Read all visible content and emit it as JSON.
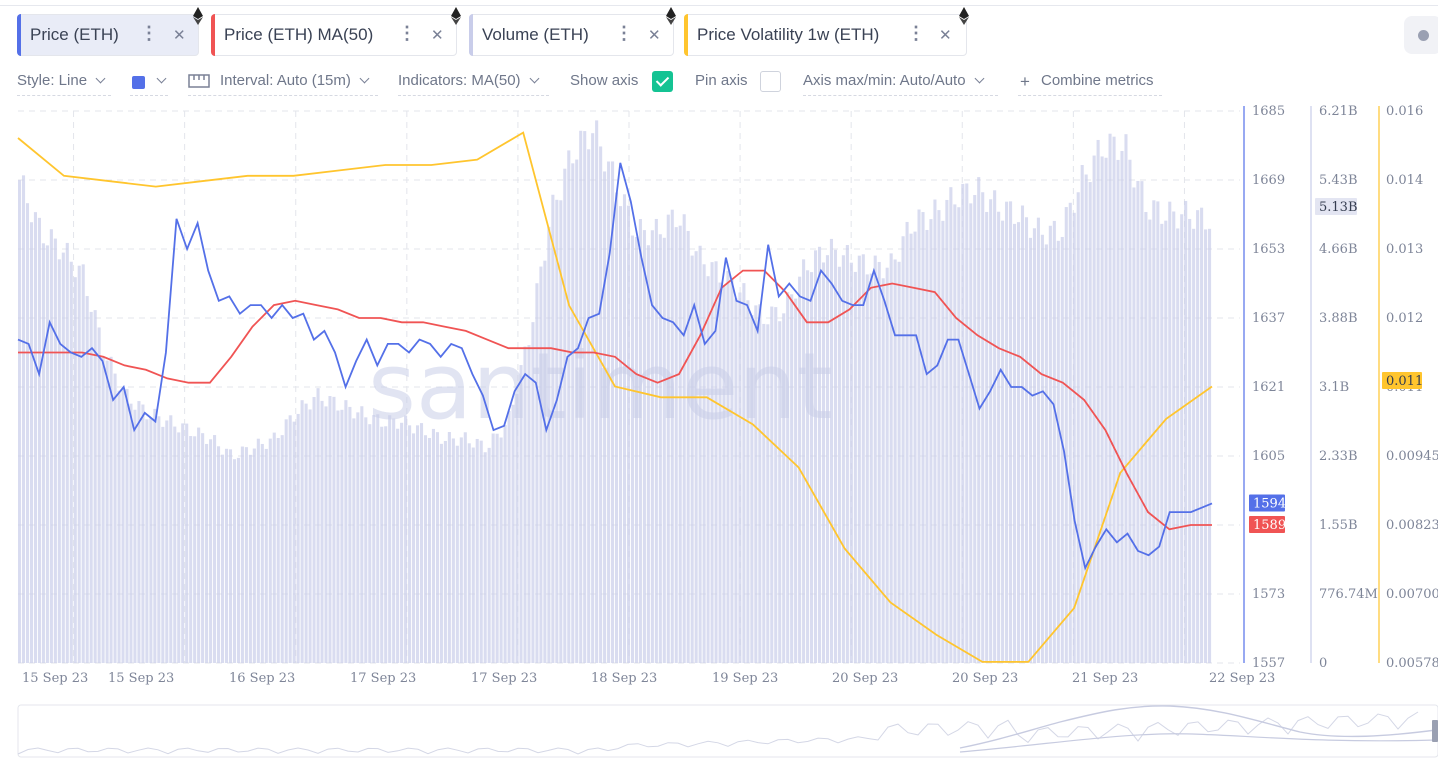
{
  "tabs": [
    {
      "label": "Price (ETH)",
      "color": "#5470e8",
      "active": true
    },
    {
      "label": "Price (ETH) MA(50)",
      "color": "#f05454",
      "active": false
    },
    {
      "label": "Volume (ETH)",
      "color": "#c9cdea",
      "active": false
    },
    {
      "label": "Price Volatility 1w (ETH)",
      "color": "#ffc52e",
      "active": false
    }
  ],
  "toolbar": {
    "style": "Style: Line",
    "interval": "Interval: Auto (15m)",
    "indicators": "Indicators: MA(50)",
    "show_axis": "Show axis",
    "show_axis_checked": true,
    "pin_axis": "Pin axis",
    "pin_axis_checked": false,
    "axis_maxmin": "Axis max/min: Auto/Auto",
    "combine": "Combine metrics",
    "line_color": "#5470e8"
  },
  "watermark": "santiment",
  "chart_data": {
    "type": "line",
    "x_ticks": [
      "15 Sep 23",
      "15 Sep 23",
      "16 Sep 23",
      "17 Sep 23",
      "17 Sep 23",
      "18 Sep 23",
      "19 Sep 23",
      "20 Sep 23",
      "20 Sep 23",
      "21 Sep 23",
      "22 Sep 23"
    ],
    "axes": {
      "price": {
        "ticks": [
          "1685",
          "1669",
          "1653",
          "1637",
          "1621",
          "1605",
          "1589",
          "1573",
          "1557"
        ],
        "range": [
          1557,
          1685
        ],
        "color": "#5470e8"
      },
      "volume": {
        "ticks": [
          "6.21B",
          "5.43B",
          "4.66B",
          "3.88B",
          "3.1B",
          "2.33B",
          "1.55B",
          "776.74M",
          "0"
        ],
        "range": [
          0,
          6.21
        ],
        "unit": "B"
      },
      "volatility": {
        "ticks": [
          "0.016",
          "0.014",
          "0.013",
          "0.012",
          "0.011",
          "0.00945",
          "0.00823",
          "0.00700",
          "0.00578"
        ],
        "range": [
          0.00578,
          0.016
        ],
        "color": "#ffc52e"
      }
    },
    "current_values": {
      "price": "1594",
      "price_color": "#5470e8",
      "ma50": "1589",
      "ma50_color": "#f05454",
      "volume": "5.13B",
      "volatility": "0.011",
      "volatility_color": "#ffc52e"
    },
    "series": [
      {
        "name": "Price (ETH)",
        "color": "#5470e8",
        "values": [
          1632,
          1631,
          1624,
          1636,
          1631,
          1629,
          1628,
          1630,
          1627,
          1618,
          1621,
          1611,
          1615,
          1613,
          1629,
          1660,
          1653,
          1659,
          1648,
          1641,
          1642,
          1638,
          1640,
          1640,
          1637,
          1640,
          1637,
          1638,
          1632,
          1634,
          1629,
          1621,
          1627,
          1632,
          1626,
          1631,
          1631,
          1629,
          1632,
          1631,
          1628,
          1631,
          1630,
          1624,
          1619,
          1611,
          1612,
          1620,
          1624,
          1622,
          1611,
          1618,
          1628,
          1630,
          1637,
          1638,
          1652,
          1673,
          1664,
          1651,
          1640,
          1637,
          1636,
          1633,
          1640,
          1631,
          1634,
          1651,
          1641,
          1640,
          1634,
          1654,
          1642,
          1645,
          1642,
          1641,
          1648,
          1645,
          1641,
          1640,
          1640,
          1648,
          1641,
          1633,
          1633,
          1633,
          1624,
          1626,
          1632,
          1632,
          1624,
          1616,
          1620,
          1625,
          1621,
          1621,
          1619,
          1620,
          1617,
          1606,
          1590,
          1579,
          1584,
          1588,
          1585,
          1587,
          1583,
          1582,
          1584,
          1592,
          1592,
          1592,
          1593,
          1594
        ]
      },
      {
        "name": "Price (ETH) MA(50)",
        "color": "#f05454",
        "values": [
          1629,
          1629,
          1629,
          1629,
          1628,
          1626,
          1625,
          1623,
          1622,
          1622,
          1628,
          1635,
          1640,
          1641,
          1640,
          1639,
          1637,
          1637,
          1636,
          1636,
          1635,
          1634,
          1632,
          1630,
          1630,
          1630,
          1629,
          1629,
          1628,
          1624,
          1622,
          1624,
          1633,
          1644,
          1648,
          1648,
          1643,
          1636,
          1636,
          1639,
          1644,
          1645,
          1644,
          1643,
          1637,
          1633,
          1630,
          1628,
          1624,
          1622,
          1618,
          1611,
          1601,
          1592,
          1588,
          1589,
          1589
        ]
      },
      {
        "name": "Price Volatility 1w (ETH)",
        "color": "#ffc52e",
        "values": [
          0.0155,
          0.0148,
          0.0147,
          0.0146,
          0.0147,
          0.0148,
          0.0148,
          0.0149,
          0.015,
          0.015,
          0.0151,
          0.0156,
          0.0124,
          0.0109,
          0.0107,
          0.0107,
          0.0102,
          0.0094,
          0.0079,
          0.0069,
          0.0063,
          0.0058,
          0.0058,
          0.0068,
          0.0093,
          0.0103,
          0.0109
        ]
      },
      {
        "name": "Volume (ETH)",
        "color": "#c9cdea",
        "values": [
          5.6,
          5.0,
          4.8,
          4.5,
          3.6,
          3.1,
          2.9,
          2.8,
          2.7,
          2.6,
          2.4,
          2.5,
          2.6,
          2.9,
          3.1,
          3.0,
          2.9,
          2.8,
          2.8,
          2.7,
          2.6,
          2.6,
          2.5,
          2.8,
          3.8,
          5.2,
          5.9,
          6.2,
          5.6,
          5.0,
          5.0,
          5.2,
          4.7,
          4.5,
          4.3,
          4.0,
          4.1,
          4.6,
          4.8,
          4.7,
          4.6,
          4.6,
          5.1,
          5.2,
          5.4,
          5.5,
          5.3,
          5.2,
          5.0,
          5.0,
          5.6,
          6.0,
          6.0,
          5.3,
          5.2,
          5.2,
          5.13
        ]
      }
    ]
  }
}
